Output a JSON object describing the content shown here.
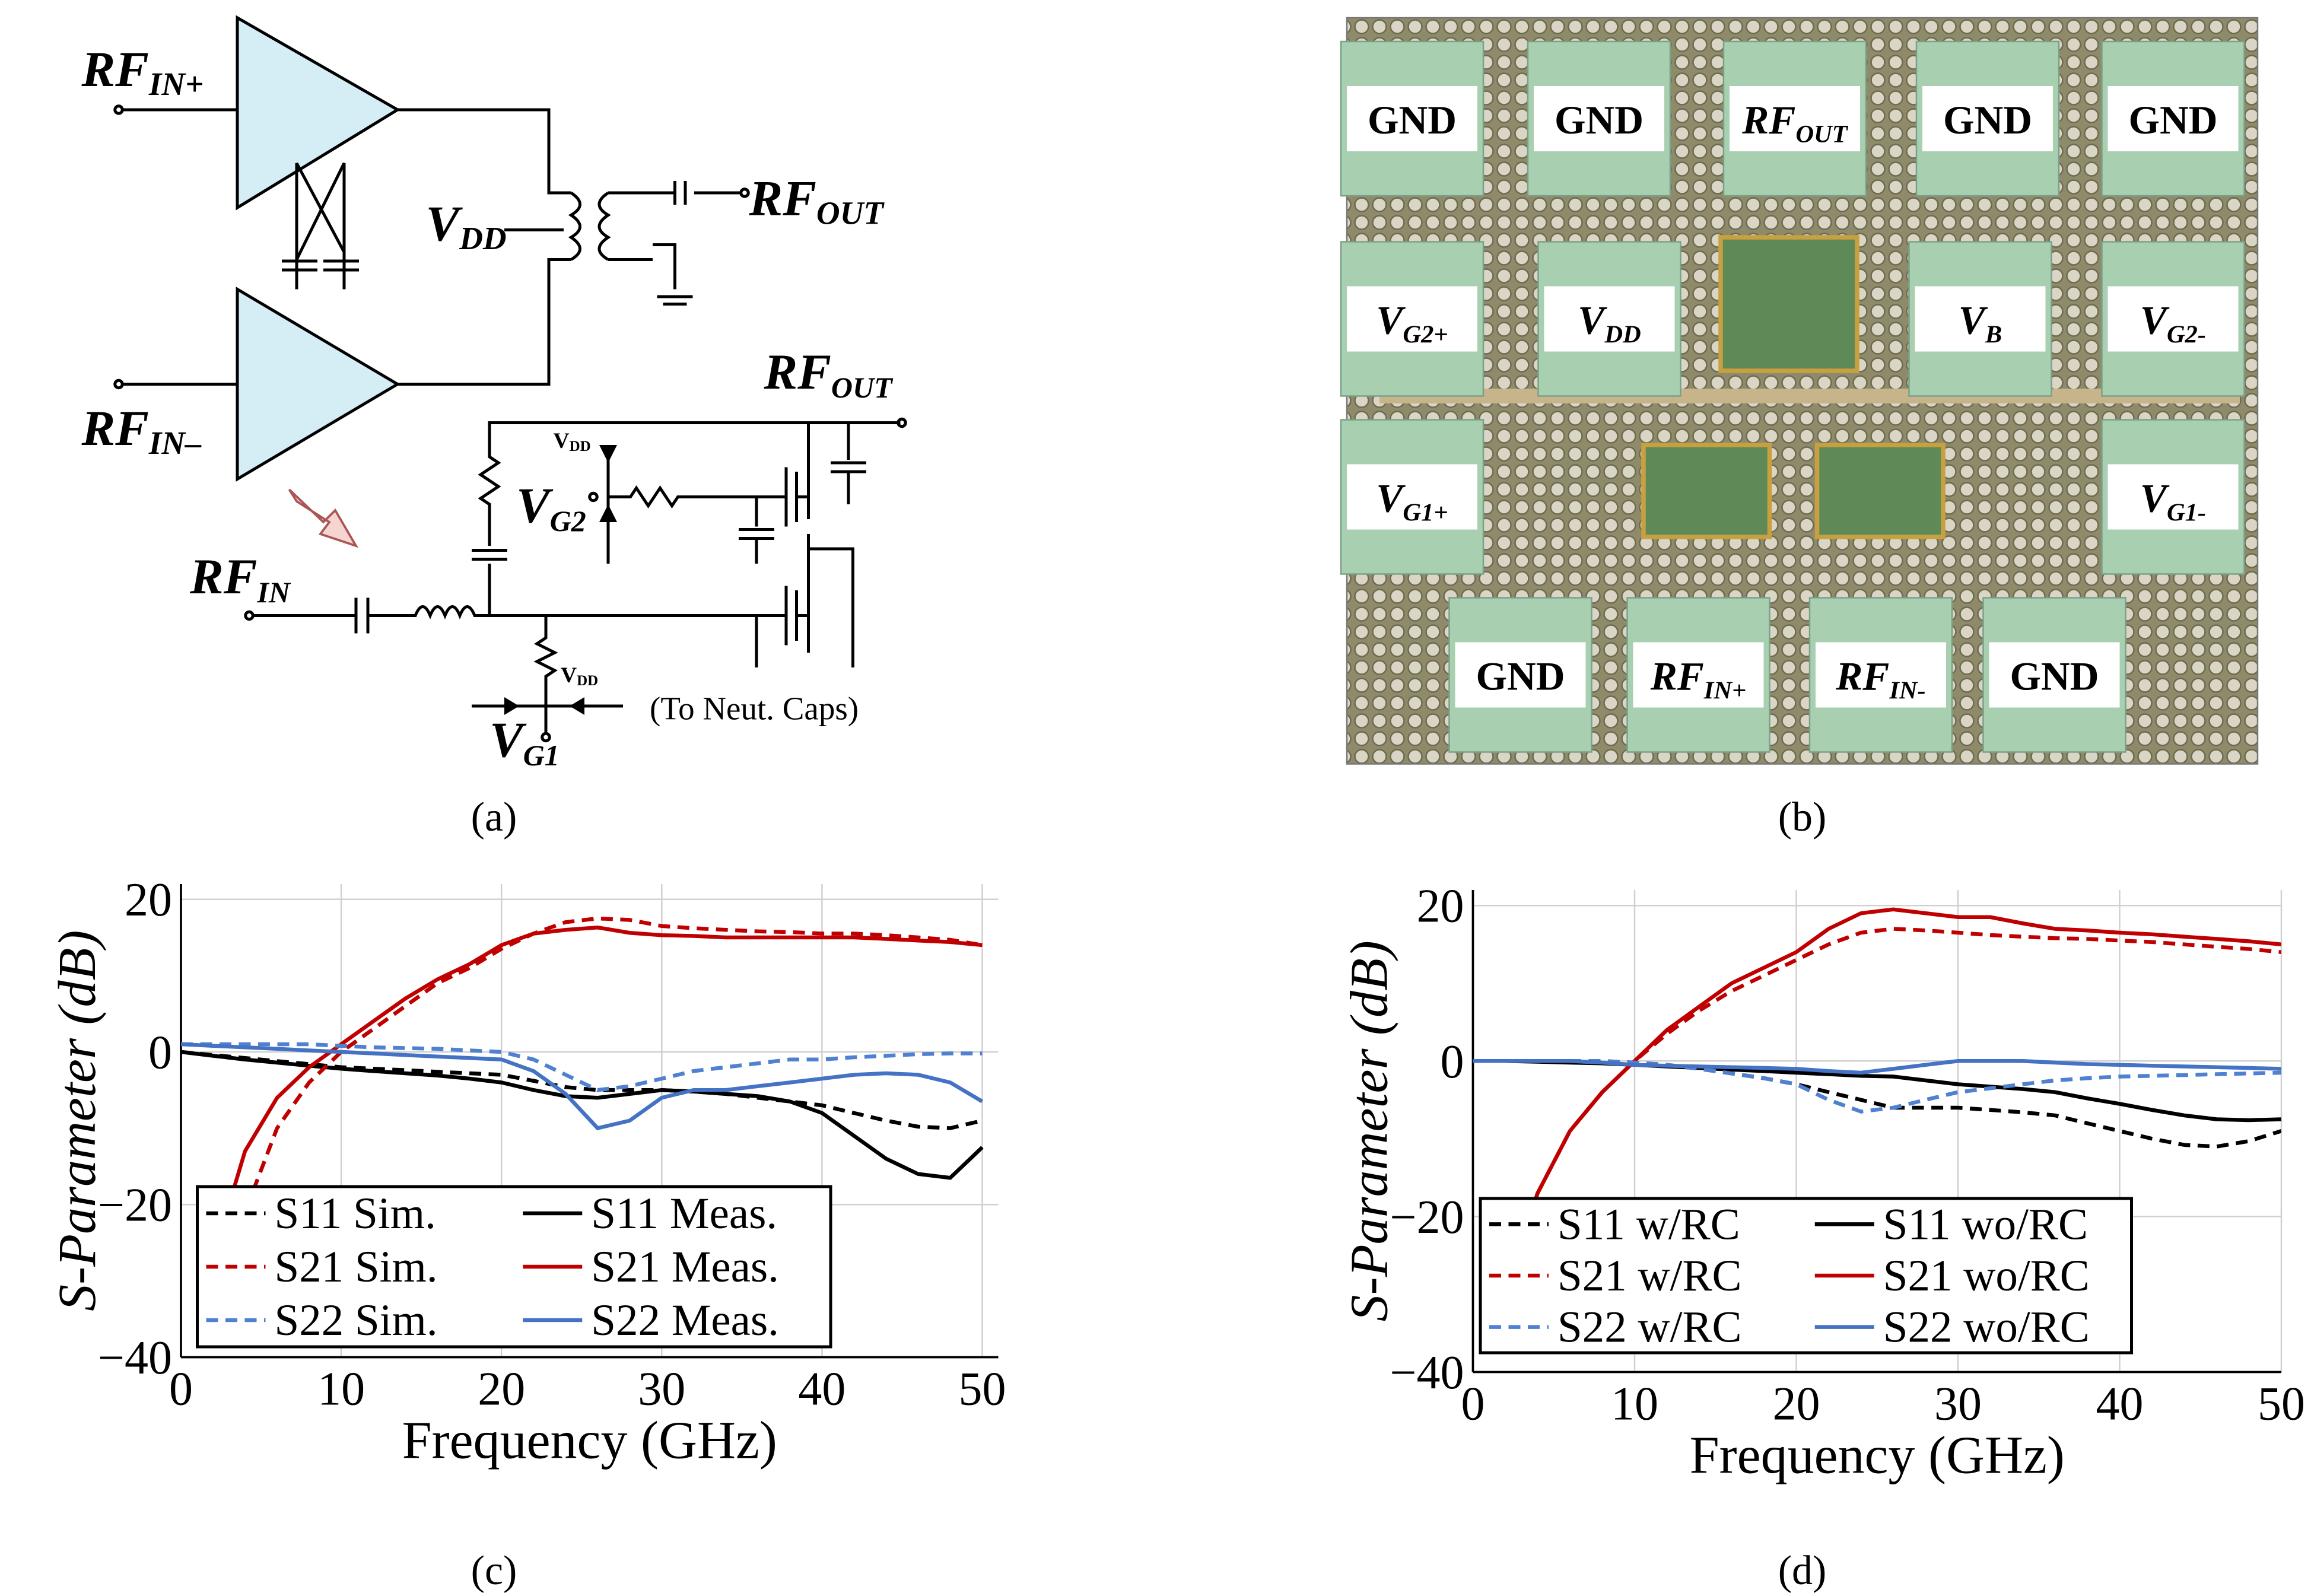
{
  "schematic": {
    "labels": [
      {
        "main": "RF",
        "sub": "IN+"
      },
      {
        "main": "RF",
        "sub": "IN–"
      },
      {
        "main": "V",
        "sub": "DD"
      },
      {
        "main": "RF",
        "sub": "OUT"
      },
      {
        "main": "RF",
        "sub": "OUT"
      },
      {
        "main": "V",
        "sub": "DD"
      },
      {
        "main": "V",
        "sub": "G2"
      },
      {
        "main": "RF",
        "sub": "IN"
      },
      {
        "main": "V",
        "sub": "DD"
      },
      {
        "main": "V",
        "sub": "G1"
      }
    ],
    "note": "(To Neut. Caps)"
  },
  "die_photo": {
    "pads": [
      {
        "main": "GND"
      },
      {
        "main": "GND"
      },
      {
        "main": "RF",
        "sub": "OUT"
      },
      {
        "main": "GND"
      },
      {
        "main": "GND"
      },
      {
        "main": "V",
        "sub": "G2+"
      },
      {
        "main": "V",
        "sub": "DD"
      },
      {
        "main": "V",
        "sub": "B"
      },
      {
        "main": "V",
        "sub": "G2-"
      },
      {
        "main": "V",
        "sub": "G1+"
      },
      {
        "main": "V",
        "sub": "G1-"
      },
      {
        "main": "GND"
      },
      {
        "main": "RF",
        "sub": "IN+"
      },
      {
        "main": "RF",
        "sub": "IN-"
      },
      {
        "main": "GND"
      }
    ]
  },
  "captions": [
    "(a)",
    "(b)",
    "(c)",
    "(d)"
  ],
  "chart_data": [
    {
      "type": "line",
      "xlabel": "Frequency (GHz)",
      "ylabel": "S-Parameter (dB)",
      "x": [
        0,
        2,
        4,
        6,
        8,
        10,
        12,
        14,
        16,
        18,
        20,
        22,
        24,
        26,
        28,
        30,
        32,
        34,
        36,
        38,
        40,
        42,
        44,
        46,
        48,
        50
      ],
      "xlim": [
        0,
        51
      ],
      "ylim": [
        -40,
        22
      ],
      "xticks": [
        0,
        10,
        20,
        30,
        40,
        50
      ],
      "yticks": [
        {
          "value": -40,
          "label": "−40"
        },
        {
          "value": -20,
          "label": "−20"
        },
        0,
        20
      ],
      "grid": true,
      "series": [
        {
          "name": "S11 Sim.",
          "color": "#000000",
          "dash": true,
          "values": [
            0,
            -0.4,
            -0.8,
            -1.2,
            -1.6,
            -2,
            -2.2,
            -2.4,
            -2.6,
            -2.8,
            -3,
            -3.8,
            -4.6,
            -5,
            -5,
            -5,
            -5.2,
            -5.5,
            -6,
            -6.5,
            -7,
            -8,
            -9,
            -9.8,
            -10,
            -9
          ]
        },
        {
          "name": "S11 Meas.",
          "color": "#000000",
          "dash": false,
          "values": [
            0,
            -0.5,
            -1,
            -1.4,
            -1.8,
            -2.2,
            -2.5,
            -2.8,
            -3.1,
            -3.5,
            -4,
            -5,
            -5.8,
            -6,
            -5.5,
            -5,
            -5.2,
            -5.5,
            -5.8,
            -6.5,
            -8,
            -11,
            -14,
            -16,
            -16.5,
            -12.5
          ]
        },
        {
          "name": "S21 Sim.",
          "color": "#c00000",
          "dash": true,
          "values": [
            null,
            -35,
            -21,
            -10,
            -4,
            0,
            3,
            6,
            9,
            11,
            13.5,
            15.5,
            17,
            17.5,
            17.3,
            16.5,
            16.2,
            16,
            15.8,
            15.7,
            15.5,
            15.5,
            15.3,
            15,
            14.7,
            14
          ]
        },
        {
          "name": "S21 Meas.",
          "color": "#c00000",
          "dash": false,
          "values": [
            null,
            -27,
            -13,
            -6,
            -2,
            1,
            4,
            7,
            9.5,
            11.5,
            14,
            15.5,
            16,
            16.3,
            15.6,
            15.3,
            15.2,
            15,
            15,
            15,
            15,
            15,
            14.8,
            14.6,
            14.4,
            14
          ]
        },
        {
          "name": "S22 Sim.",
          "color": "#4f81d0",
          "dash": true,
          "values": [
            1,
            1,
            1,
            1,
            1,
            0.8,
            0.6,
            0.5,
            0.4,
            0.2,
            0,
            -1,
            -3,
            -5,
            -4.5,
            -3.5,
            -2.5,
            -2,
            -1.5,
            -1,
            -1,
            -0.7,
            -0.5,
            -0.3,
            -0.2,
            -0.2
          ]
        },
        {
          "name": "S22 Meas.",
          "color": "#4472c4",
          "dash": false,
          "values": [
            1,
            0.8,
            0.6,
            0.4,
            0.2,
            0,
            -0.2,
            -0.4,
            -0.6,
            -0.8,
            -1,
            -2.5,
            -5.5,
            -10,
            -9,
            -6,
            -5,
            -5,
            -4.5,
            -4,
            -3.5,
            -3,
            -2.8,
            -3,
            -4,
            -6.5
          ]
        }
      ]
    },
    {
      "type": "line",
      "xlabel": "Frequency (GHz)",
      "ylabel": "S-Parameter (dB)",
      "x": [
        0,
        2,
        4,
        6,
        8,
        10,
        12,
        14,
        16,
        18,
        20,
        22,
        24,
        26,
        28,
        30,
        32,
        34,
        36,
        38,
        40,
        42,
        44,
        46,
        48,
        50
      ],
      "xlim": [
        0,
        50
      ],
      "ylim": [
        -40,
        22
      ],
      "xticks": [
        0,
        10,
        20,
        30,
        40,
        50
      ],
      "yticks": [
        {
          "value": -40,
          "label": "−40"
        },
        {
          "value": -20,
          "label": "−20"
        },
        0,
        20
      ],
      "grid": true,
      "series": [
        {
          "name": "S11 w/RC",
          "color": "#000000",
          "dash": true,
          "values": [
            0,
            0,
            0,
            0,
            0,
            -0.2,
            -0.5,
            -1,
            -1.6,
            -2.2,
            -3,
            -4,
            -5,
            -6,
            -6,
            -6,
            -6.3,
            -6.6,
            -7,
            -8,
            -9,
            -10,
            -10.8,
            -11,
            -10.3,
            -9
          ]
        },
        {
          "name": "S11 wo/RC",
          "color": "#000000",
          "dash": false,
          "values": [
            0,
            0,
            -0.1,
            -0.2,
            -0.3,
            -0.5,
            -0.7,
            -0.9,
            -1.1,
            -1.3,
            -1.5,
            -1.7,
            -1.9,
            -2,
            -2.5,
            -3,
            -3.3,
            -3.6,
            -4,
            -4.8,
            -5.5,
            -6.3,
            -7,
            -7.5,
            -7.6,
            -7.5
          ]
        },
        {
          "name": "S21 w/RC",
          "color": "#c00000",
          "dash": true,
          "values": [
            null,
            -29,
            -17,
            -9,
            -4,
            0,
            3.5,
            6.5,
            9,
            11,
            13,
            15,
            16.5,
            17,
            16.8,
            16.5,
            16.2,
            16,
            15.8,
            15.7,
            15.5,
            15.3,
            15,
            14.7,
            14.4,
            14
          ]
        },
        {
          "name": "S21 wo/RC",
          "color": "#c00000",
          "dash": false,
          "values": [
            null,
            -29,
            -17,
            -9,
            -4,
            0,
            4,
            7,
            10,
            12,
            14,
            17,
            19,
            19.5,
            19,
            18.5,
            18.5,
            17.7,
            17,
            16.8,
            16.5,
            16.3,
            16,
            15.7,
            15.4,
            15
          ]
        },
        {
          "name": "S22 w/RC",
          "color": "#4f81d0",
          "dash": true,
          "values": [
            0,
            0,
            0,
            0,
            0,
            -0.2,
            -0.5,
            -1,
            -1.6,
            -2.2,
            -3,
            -5,
            -6.5,
            -6,
            -5,
            -4,
            -3.5,
            -3,
            -2.5,
            -2.2,
            -2,
            -1.9,
            -1.8,
            -1.7,
            -1.6,
            -1.5
          ]
        },
        {
          "name": "S22 wo/RC",
          "color": "#4472c4",
          "dash": false,
          "values": [
            0,
            0,
            0,
            0,
            -0.2,
            -0.5,
            -0.6,
            -0.7,
            -0.8,
            -0.9,
            -1,
            -1.3,
            -1.5,
            -1,
            -0.5,
            0,
            0,
            0,
            -0.2,
            -0.4,
            -0.5,
            -0.6,
            -0.7,
            -0.8,
            -0.9,
            -1
          ]
        }
      ]
    }
  ]
}
